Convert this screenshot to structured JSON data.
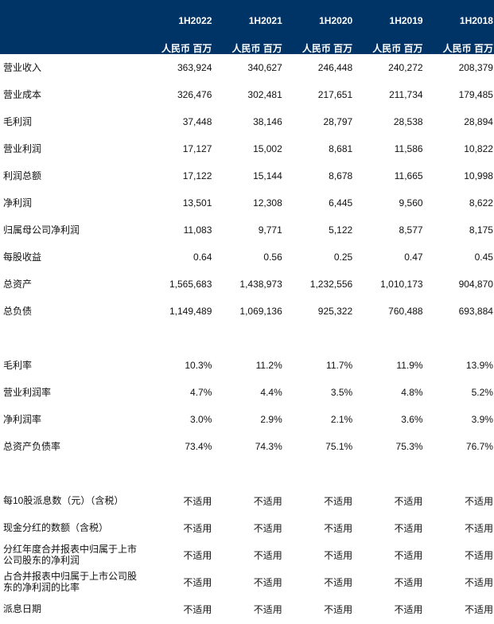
{
  "header": {
    "years": [
      "1H2022",
      "1H2021",
      "1H2020",
      "1H2019",
      "1H2018"
    ],
    "unit": "人民币 百万"
  },
  "sections": [
    {
      "rows": [
        {
          "label": "营业收入",
          "values": [
            "363,924",
            "340,627",
            "246,448",
            "240,272",
            "208,379"
          ]
        },
        {
          "label": "营业成本",
          "values": [
            "326,476",
            "302,481",
            "217,651",
            "211,734",
            "179,485"
          ]
        },
        {
          "label": "毛利润",
          "values": [
            "37,448",
            "38,146",
            "28,797",
            "28,538",
            "28,894"
          ]
        },
        {
          "label": "营业利润",
          "values": [
            "17,127",
            "15,002",
            "8,681",
            "11,586",
            "10,822"
          ]
        },
        {
          "label": "利润总额",
          "values": [
            "17,122",
            "15,144",
            "8,678",
            "11,665",
            "10,998"
          ]
        },
        {
          "label": "净利润",
          "values": [
            "13,501",
            "12,308",
            "6,445",
            "9,560",
            "8,622"
          ]
        },
        {
          "label": "归属母公司净利润",
          "values": [
            "11,083",
            "9,771",
            "5,122",
            "8,577",
            "8,175"
          ]
        },
        {
          "label": "每股收益",
          "values": [
            "0.64",
            "0.56",
            "0.25",
            "0.47",
            "0.45"
          ]
        },
        {
          "label": "总资产",
          "values": [
            "1,565,683",
            "1,438,973",
            "1,232,556",
            "1,010,173",
            "904,870"
          ]
        },
        {
          "label": "总负债",
          "values": [
            "1,149,489",
            "1,069,136",
            "925,322",
            "760,488",
            "693,884"
          ]
        }
      ]
    },
    {
      "rows": [
        {
          "label": "毛利率",
          "values": [
            "10.3%",
            "11.2%",
            "11.7%",
            "11.9%",
            "13.9%"
          ]
        },
        {
          "label": "营业利润率",
          "values": [
            "4.7%",
            "4.4%",
            "3.5%",
            "4.8%",
            "5.2%"
          ]
        },
        {
          "label": "净利润率",
          "values": [
            "3.0%",
            "2.9%",
            "2.1%",
            "3.6%",
            "3.9%"
          ]
        },
        {
          "label": "总资产负债率",
          "values": [
            "73.4%",
            "74.3%",
            "75.1%",
            "75.3%",
            "76.7%"
          ]
        }
      ]
    },
    {
      "rows": [
        {
          "label": "每10股派息数（元）（含税）",
          "values": [
            "不适用",
            "不适用",
            "不适用",
            "不适用",
            "不适用"
          ]
        },
        {
          "label": "现金分红的数额（含税）",
          "values": [
            "不适用",
            "不适用",
            "不适用",
            "不适用",
            "不适用"
          ]
        },
        {
          "label": "分红年度合并报表中归属于上市公司股东的净利润",
          "values": [
            "不适用",
            "不适用",
            "不适用",
            "不适用",
            "不适用"
          ]
        },
        {
          "label": "占合并报表中归属于上市公司股东的净利润的比率",
          "values": [
            "不适用",
            "不适用",
            "不适用",
            "不适用",
            "不适用"
          ]
        },
        {
          "label": "派息日期",
          "values": [
            "不适用",
            "不适用",
            "不适用",
            "不适用",
            "不适用"
          ]
        }
      ]
    }
  ]
}
